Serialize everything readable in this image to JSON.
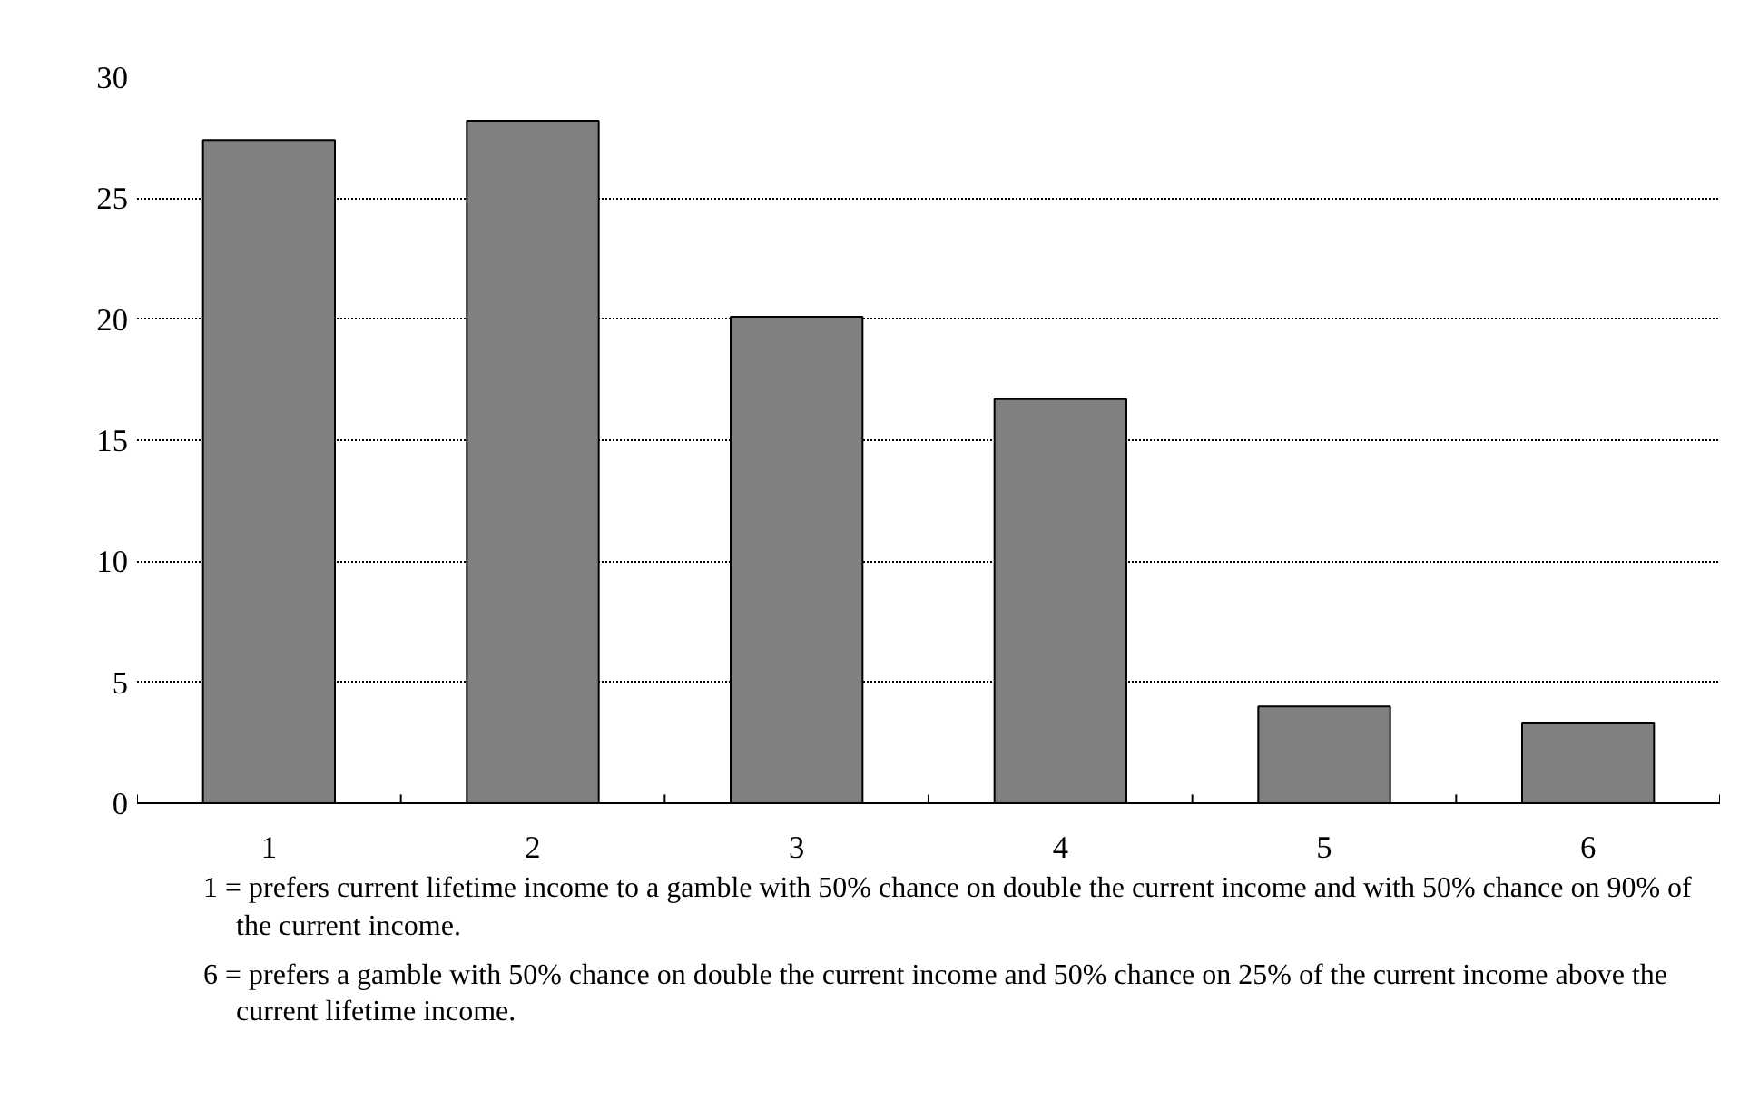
{
  "chart_data": {
    "type": "bar",
    "categories": [
      "1",
      "2",
      "3",
      "4",
      "5",
      "6"
    ],
    "values": [
      27.4,
      28.2,
      20.1,
      16.7,
      4.0,
      3.3
    ],
    "color": "#808080",
    "ylim": [
      0,
      30
    ],
    "yticks": [
      0,
      5,
      10,
      15,
      20,
      25,
      30
    ],
    "grid": "y",
    "annotations": [
      "1 = prefers current lifetime income to a gamble with 50% chance on double the current income and with 50% chance on 90% of the current income.",
      "6 = prefers a gamble with 50% chance on double the current income and 50% chance on 25% of the current income above the current lifetime income."
    ]
  }
}
